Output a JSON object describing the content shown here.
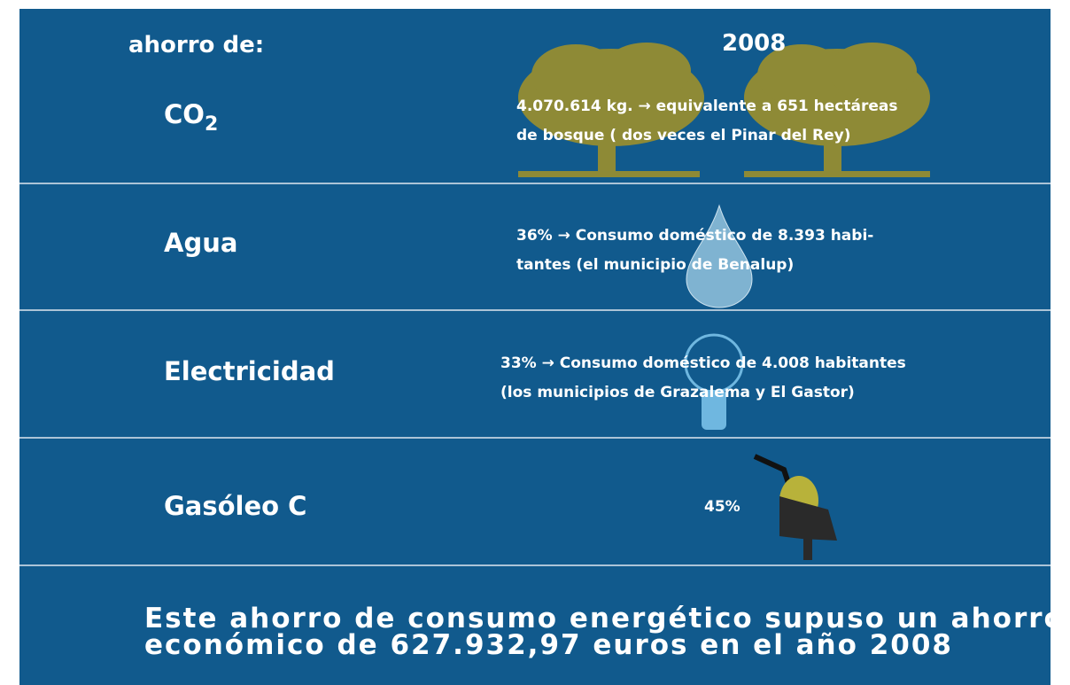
{
  "header": {
    "label": "ahorro de:",
    "year": "2008"
  },
  "rows": [
    {
      "label": "CO",
      "label_subscript": "2",
      "lines": [
        "4.070.614 kg. → equivalente a 651 hectáreas",
        "de bosque ( dos veces el Pinar del Rey)"
      ]
    },
    {
      "label": "Agua",
      "lines": [
        "36% → Consumo doméstico de 8.393 habi-",
        "tantes (el municipio de Benalup)"
      ]
    },
    {
      "label": "Electricidad",
      "lines": [
        "33% → Consumo doméstico de 4.008 habitantes",
        "(los municipios de Grazalema y El Gastor)"
      ]
    },
    {
      "label": "Gasóleo C",
      "lines": [
        "45%"
      ]
    }
  ],
  "footer": {
    "lines": [
      "Este ahorro de consumo energético supuso un ahorro",
      "económico de 627.932,97 euros en el año 2008"
    ]
  }
}
